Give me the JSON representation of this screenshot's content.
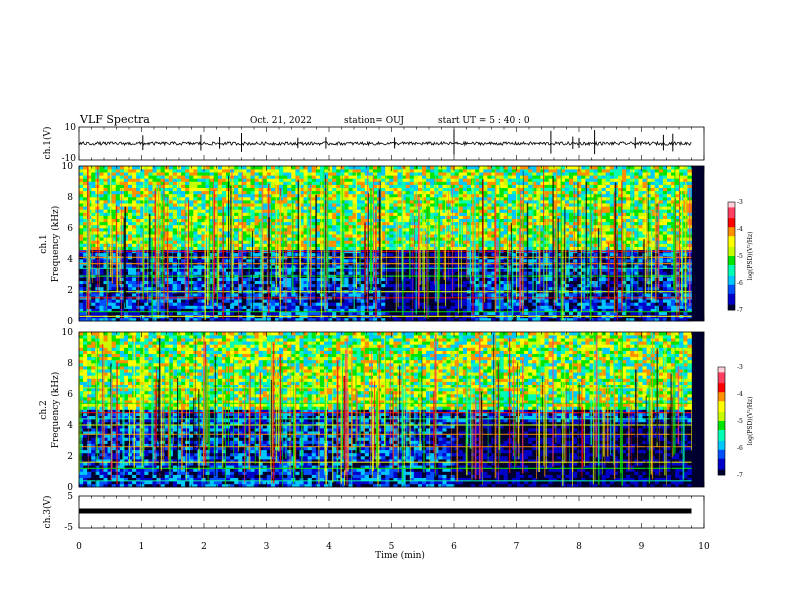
{
  "header": {
    "title": "VLF Spectra",
    "date": "Oct. 21, 2022",
    "station": "station= OUJ",
    "start_time": "start  UT =   5 : 40 : 0"
  },
  "chart_data": [
    {
      "type": "line",
      "name": "ch1-waveform",
      "ylabel": "ch.1(V)",
      "ylim": [
        -10,
        10
      ],
      "ytick_labels": [
        "10",
        "-10"
      ],
      "x_range_min": [
        0,
        9.8
      ],
      "baseline_V": 0,
      "noise_amplitude_V": 1,
      "spike_times_min": [
        1.02,
        1.95,
        2.25,
        2.6,
        3.5,
        3.95,
        5.05,
        6.0,
        7.55,
        7.9,
        8.0,
        8.25,
        8.9,
        9.35,
        9.5
      ]
    },
    {
      "type": "heatmap",
      "name": "ch1-spectrogram",
      "ylabel": "ch.1\nFrequency (kHz)",
      "ylim_kHz": [
        0,
        10
      ],
      "ytick_labels": [
        "0",
        "2",
        "4",
        "6",
        "8",
        "10"
      ],
      "x_range_min": [
        0,
        9.8
      ],
      "colorbar": {
        "label": "log(PSD)(V²/Hz)",
        "range": [
          -7,
          -3
        ],
        "tick_labels": [
          "-3",
          "-4",
          "-5",
          "-6",
          "-7"
        ]
      },
      "bands_kHz": [
        {
          "from": 4.6,
          "to": 10,
          "level": "high"
        },
        {
          "from": 0,
          "to": 4.6,
          "level": "low"
        }
      ],
      "quiet_region": {
        "x_min": [
          4.9,
          6.2
        ],
        "f_kHz": [
          0,
          4.4
        ]
      },
      "emission_lines_kHz": [
        0.3,
        0.6,
        1.5,
        1.9,
        2.9,
        3.4,
        3.7,
        4.1,
        4.5
      ]
    },
    {
      "type": "heatmap",
      "name": "ch2-spectrogram",
      "ylabel": "ch.2\nFrequency (kHz)",
      "ylim_kHz": [
        0,
        10
      ],
      "ytick_labels": [
        "0",
        "2",
        "4",
        "6",
        "8",
        "10"
      ],
      "x_range_min": [
        0,
        9.8
      ],
      "colorbar": {
        "label": "log(PSD)(V²/Hz)",
        "range": [
          -7,
          -3
        ],
        "tick_labels": [
          "-3",
          "-4",
          "-5",
          "-6",
          "-7"
        ]
      },
      "bands_kHz": [
        {
          "from": 5.0,
          "to": 10,
          "level": "high"
        },
        {
          "from": 0,
          "to": 5.0,
          "level": "low"
        }
      ],
      "quiet_region": {
        "x_min": [
          6.0,
          9.8
        ],
        "f_kHz": [
          0,
          4.0
        ]
      },
      "emission_lines_kHz": [
        0.4,
        1.2,
        1.6,
        2.6,
        3.4,
        4.0,
        4.4,
        4.8,
        5.4,
        6.4
      ]
    },
    {
      "type": "line",
      "name": "ch3-waveform",
      "ylabel": "ch.3(V)",
      "ylim": [
        -5,
        5
      ],
      "ytick_labels": [
        "5",
        "-5"
      ],
      "x_range_min": [
        0,
        9.8
      ],
      "constant_value_V": 0.3
    }
  ],
  "x_axis": {
    "label": "Time (min)",
    "range_min": [
      0,
      10
    ],
    "tick_labels": [
      "0",
      "1",
      "2",
      "3",
      "4",
      "5",
      "6",
      "7",
      "8",
      "9",
      "10"
    ]
  },
  "colors": {
    "colormap": [
      "#000030",
      "#0000c8",
      "#0050ff",
      "#00c8ff",
      "#00ffb4",
      "#00e600",
      "#c8ff00",
      "#ffff00",
      "#ff9000",
      "#ff0000",
      "#ff4060",
      "#ffd0d8",
      "#ffffff"
    ],
    "lines": "#000000"
  }
}
